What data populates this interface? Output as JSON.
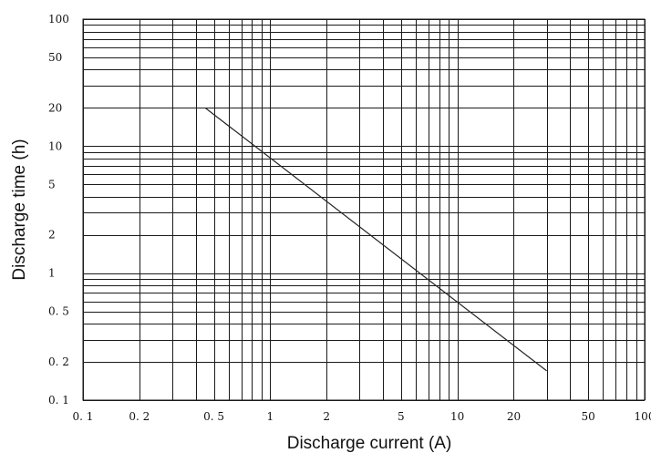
{
  "chart_data": {
    "type": "line",
    "title": "",
    "xlabel": "Discharge current (A)",
    "ylabel": "Discharge time (h)",
    "xscale": "log",
    "yscale": "log",
    "xlim": [
      0.1,
      100
    ],
    "ylim": [
      0.1,
      100
    ],
    "grid": true,
    "legend": "none",
    "x_ticks": [
      {
        "value": 0.1,
        "label": "0. 1"
      },
      {
        "value": 0.2,
        "label": "0. 2"
      },
      {
        "value": 0.5,
        "label": "0. 5"
      },
      {
        "value": 1,
        "label": "1"
      },
      {
        "value": 2,
        "label": "2"
      },
      {
        "value": 5,
        "label": "5"
      },
      {
        "value": 10,
        "label": "10"
      },
      {
        "value": 20,
        "label": "20"
      },
      {
        "value": 50,
        "label": "50"
      },
      {
        "value": 100,
        "label": "100"
      }
    ],
    "y_ticks": [
      {
        "value": 0.1,
        "label": "0. 1"
      },
      {
        "value": 0.2,
        "label": "0. 2"
      },
      {
        "value": 0.5,
        "label": "0. 5"
      },
      {
        "value": 1,
        "label": "1"
      },
      {
        "value": 2,
        "label": "2"
      },
      {
        "value": 5,
        "label": "5"
      },
      {
        "value": 10,
        "label": "10"
      },
      {
        "value": 20,
        "label": "20"
      },
      {
        "value": 50,
        "label": "50"
      },
      {
        "value": 100,
        "label": "100"
      }
    ],
    "series": [
      {
        "x": [
          0.45,
          30
        ],
        "y": [
          20,
          0.17
        ]
      }
    ],
    "colors": {
      "line": "#222222",
      "grid": "#1a1a1a",
      "background": "#ffffff"
    }
  }
}
